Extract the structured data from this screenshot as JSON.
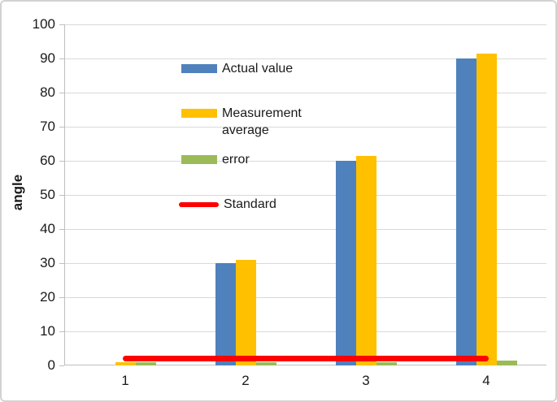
{
  "chart_data": {
    "type": "bar",
    "ylabel": "angle",
    "categories": [
      "1",
      "2",
      "3",
      "4"
    ],
    "yticks": [
      "0",
      "10",
      "20",
      "30",
      "40",
      "50",
      "60",
      "70",
      "80",
      "90",
      "100"
    ],
    "ylim": [
      0,
      100
    ],
    "ytick_step": 10,
    "grid": "horizontal",
    "legend_position": "inside-upper-left",
    "series": [
      {
        "name": "Actual value",
        "type": "bar",
        "color": "#4F81BD",
        "values": [
          0,
          30,
          60,
          90
        ]
      },
      {
        "name": "Measurement average",
        "type": "bar",
        "color": "#FFC000",
        "values": [
          1,
          31,
          61.5,
          91.5
        ]
      },
      {
        "name": "error",
        "type": "bar",
        "color": "#9BBB59",
        "values": [
          1,
          1,
          1,
          1.5
        ]
      },
      {
        "name": "Standard",
        "type": "line",
        "color": "#FF0000",
        "values": [
          2,
          2,
          2,
          2
        ]
      }
    ]
  },
  "colors": {
    "gridline": "#d9d9d9",
    "axis": "#bfbfbf",
    "text": "#1a1a1a",
    "background": "#ffffff",
    "frame_border": "#d2d2d2"
  }
}
